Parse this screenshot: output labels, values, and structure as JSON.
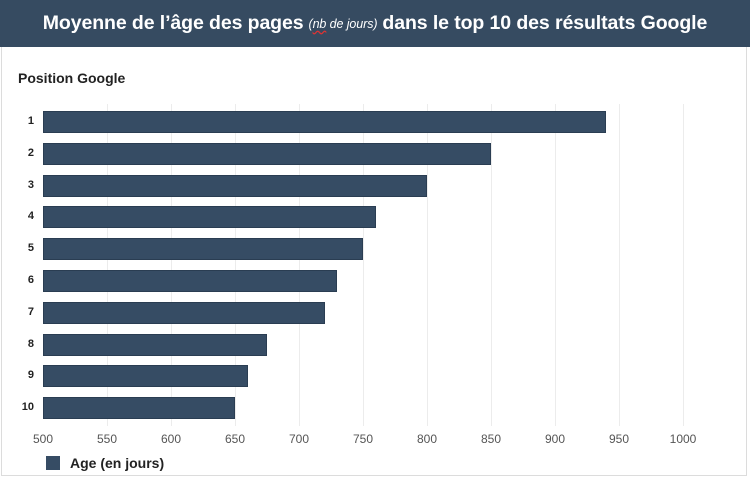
{
  "header": {
    "title_part1": "Moyenne de l’âge des pages",
    "title_sub_nb": "nb",
    "title_sub_rest": " de jours)",
    "title_sub_open": "(",
    "title_part2": "dans le top 10 des résultats Google"
  },
  "colors": {
    "header_bg": "#364b61",
    "bar": "#364c64"
  },
  "chart_data": {
    "type": "bar",
    "orientation": "horizontal",
    "title": "Moyenne de l’âge des pages (nb de jours) dans le top 10 des résultats Google",
    "ylabel": "Position Google",
    "xlabel": "",
    "categories": [
      "1",
      "2",
      "3",
      "4",
      "5",
      "6",
      "7",
      "8",
      "9",
      "10"
    ],
    "series": [
      {
        "name": "Age (en jours)",
        "values": [
          940,
          850,
          800,
          760,
          750,
          730,
          720,
          675,
          660,
          650
        ]
      }
    ],
    "xlim": [
      500,
      1000
    ],
    "xticks": [
      "500",
      "550",
      "600",
      "650",
      "700",
      "750",
      "800",
      "850",
      "900",
      "950",
      "1000"
    ],
    "grid": "vertical",
    "legend_position": "bottom-left"
  }
}
